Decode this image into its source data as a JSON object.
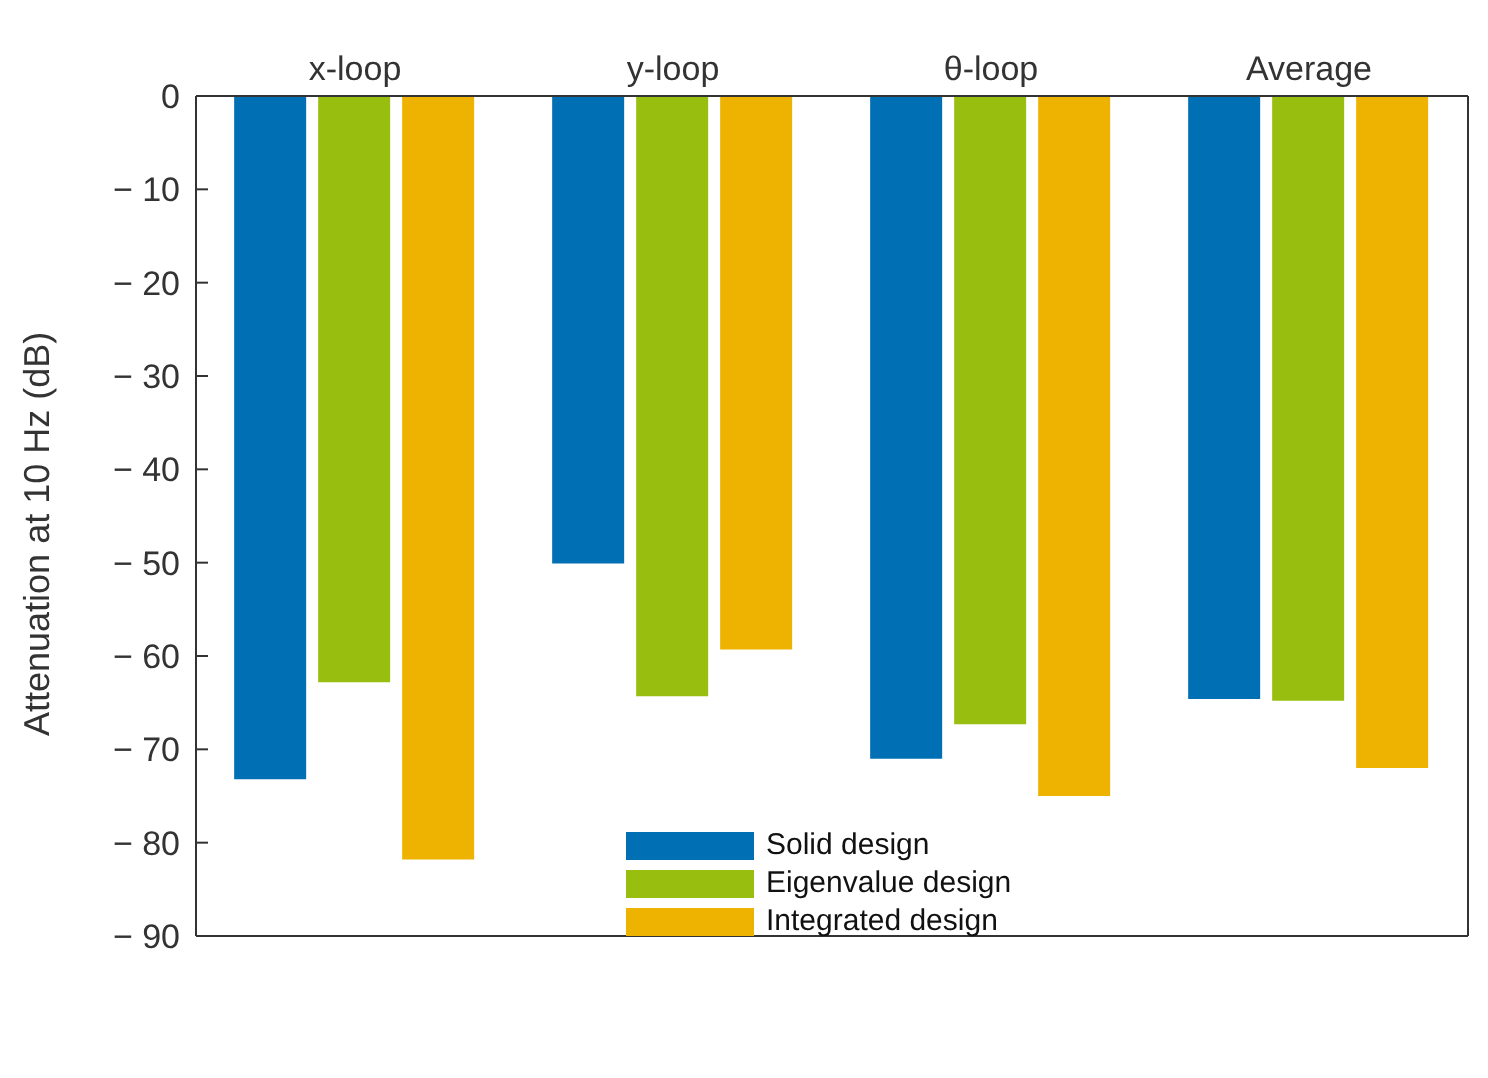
{
  "chart_data": {
    "type": "bar",
    "ylabel": "Attenuation at 10 Hz (dB)",
    "categories": [
      "x-loop",
      "y-loop",
      "θ-loop",
      "Average"
    ],
    "series": [
      {
        "name": "Solid design",
        "color": "#006fb3",
        "values": [
          -73.2,
          -50.1,
          -71.0,
          -64.6
        ]
      },
      {
        "name": "Eigenvalue design",
        "color": "#98bf10",
        "values": [
          -62.8,
          -64.3,
          -67.3,
          -64.8
        ]
      },
      {
        "name": "Integrated design",
        "color": "#eeb200",
        "values": [
          -81.8,
          -59.3,
          -75.0,
          -72.0
        ]
      }
    ],
    "ylim": [
      -90,
      0
    ],
    "yticks": [
      0,
      {
        "value": -10,
        "label": "− 10"
      },
      {
        "value": -20,
        "label": "− 20"
      },
      {
        "value": -30,
        "label": "− 30"
      },
      {
        "value": -40,
        "label": "− 40"
      },
      {
        "value": -50,
        "label": "− 50"
      },
      {
        "value": -60,
        "label": "− 60"
      },
      {
        "value": -70,
        "label": "− 70"
      },
      {
        "value": -80,
        "label": "− 80"
      },
      {
        "value": -90,
        "label": "− 90"
      }
    ],
    "grid": false,
    "legend": "bottom"
  }
}
